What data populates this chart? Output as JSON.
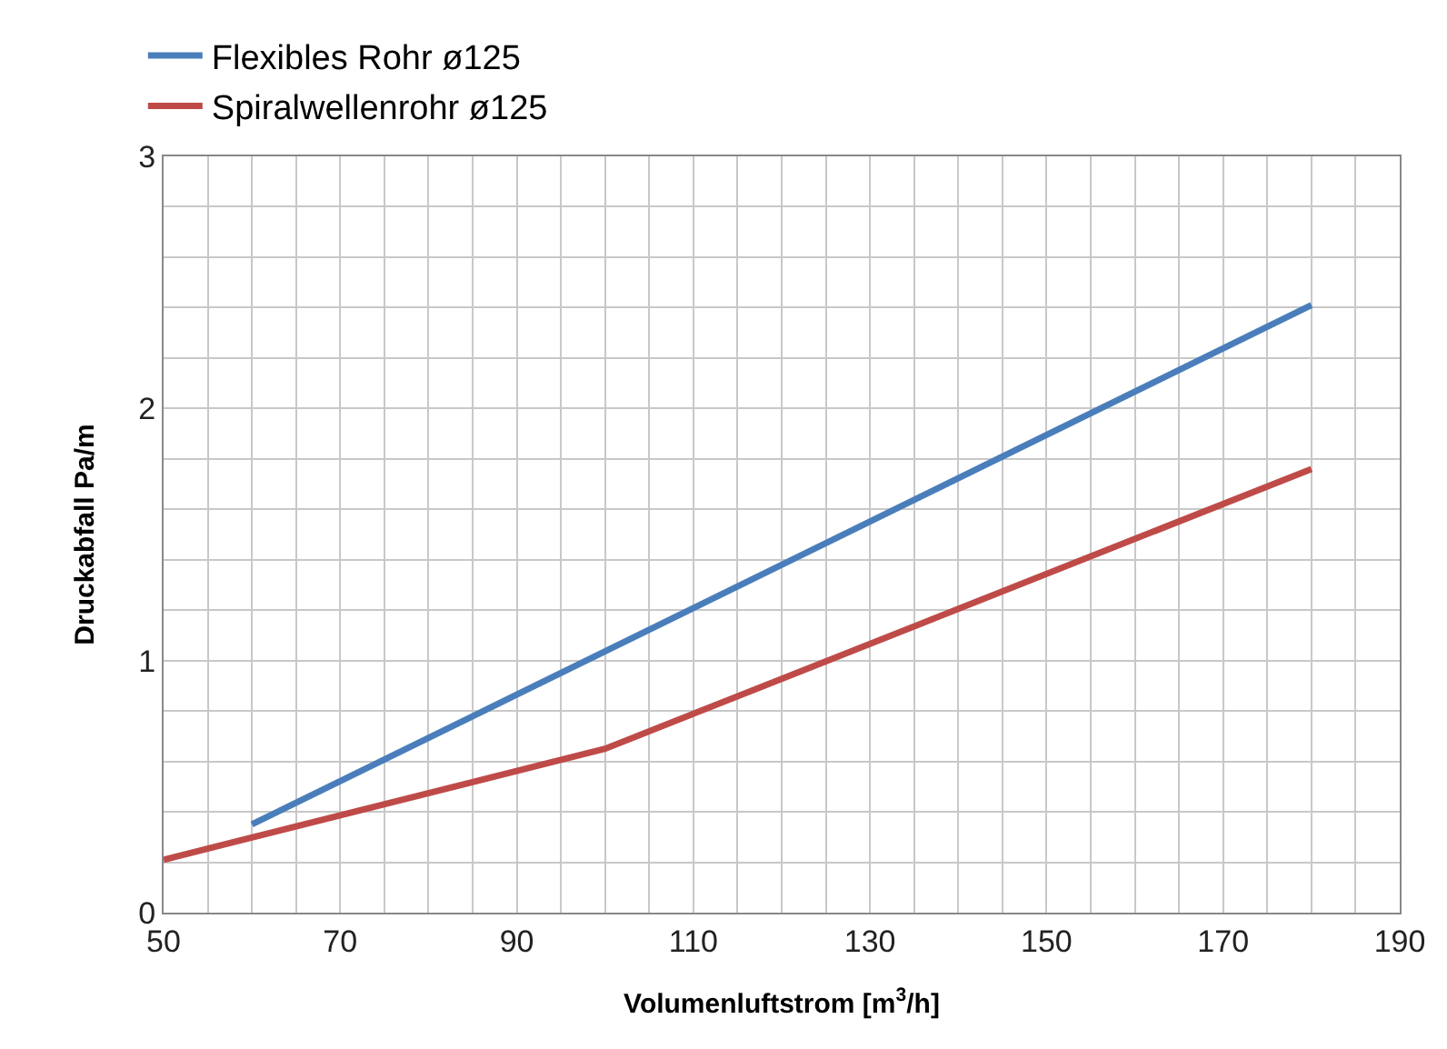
{
  "chart_data": {
    "type": "line",
    "xlabel": "Volumenluftstrom [m$^{3}$/h]",
    "ylabel": "Druckabfall Pa/m",
    "series": [
      {
        "name": "Flexibles Rohr ø125",
        "color": "#4a7ebb",
        "x": [
          60,
          180
        ],
        "values": [
          0.35,
          2.41
        ]
      },
      {
        "name": "Spiralwellenrohr ø125",
        "color": "#be4b48",
        "x": [
          50,
          100,
          180
        ],
        "values": [
          0.21,
          0.65,
          1.76
        ]
      }
    ],
    "xlim": [
      50,
      190
    ],
    "xticks": [
      50,
      {
        "value": 55,
        "label": null
      },
      {
        "value": 60,
        "label": null
      },
      {
        "value": 65,
        "label": null
      },
      70,
      {
        "value": 75,
        "label": null
      },
      {
        "value": 80,
        "label": null
      },
      {
        "value": 85,
        "label": null
      },
      90,
      {
        "value": 95,
        "label": null
      },
      {
        "value": 100,
        "label": null
      },
      {
        "value": 105,
        "label": null
      },
      110,
      {
        "value": 115,
        "label": null
      },
      {
        "value": 120,
        "label": null
      },
      {
        "value": 125,
        "label": null
      },
      130,
      {
        "value": 135,
        "label": null
      },
      {
        "value": 140,
        "label": null
      },
      {
        "value": 145,
        "label": null
      },
      150,
      {
        "value": 155,
        "label": null
      },
      {
        "value": 160,
        "label": null
      },
      {
        "value": 165,
        "label": null
      },
      170,
      {
        "value": 175,
        "label": null
      },
      {
        "value": 180,
        "label": null
      },
      {
        "value": 185,
        "label": null
      },
      190
    ],
    "ylim": [
      0,
      3
    ],
    "yticks": [
      0,
      {
        "value": 0.2,
        "label": null
      },
      {
        "value": 0.4,
        "label": null
      },
      {
        "value": 0.6,
        "label": null
      },
      {
        "value": 0.8,
        "label": null
      },
      1,
      {
        "value": 1.2,
        "label": null
      },
      {
        "value": 1.4,
        "label": null
      },
      {
        "value": 1.6,
        "label": null
      },
      {
        "value": 1.8,
        "label": null
      },
      2,
      {
        "value": 2.2,
        "label": null
      },
      {
        "value": 2.4,
        "label": null
      },
      {
        "value": 2.6,
        "label": null
      },
      {
        "value": 2.8,
        "label": null
      },
      3
    ],
    "grid": true,
    "legend": "top left",
    "marker": "none",
    "line_style": "solid"
  }
}
